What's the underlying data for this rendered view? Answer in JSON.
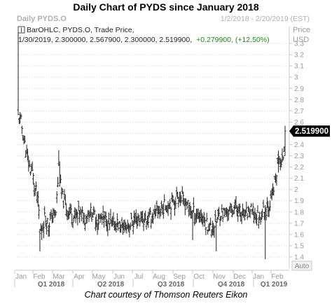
{
  "title": "Daily Chart of PYDS since January 2018",
  "caption": "Chart courtesy of Thomson Reuters Eikon",
  "header": {
    "symbol_label": "Daily PYDS.O",
    "date_range": "1/2/2018 - 2/20/2019 (EST)",
    "legend_line1": "BarOHLC, PYDS.O, Trade Price,",
    "legend_line2_prefix": "1/30/2019, 2.300000, 2.567900, 2.300000, 2.519900,",
    "legend_line2_change": "+0.279900, (+12.50%)",
    "price_label": "Price",
    "currency_label": "USD",
    "last_price_tag": "2.519900",
    "auto_label": "Auto"
  },
  "colors": {
    "bars": "#222222",
    "grid": "#dcdcdc",
    "axis_text": "#9a9a9a",
    "change_text": "#1a8a1a",
    "tag_bg": "#000000",
    "tag_text": "#ffffff"
  },
  "chart_data": {
    "type": "bar",
    "subtype": "ohlc",
    "x_axis": "date",
    "y_axis_label": "Price USD",
    "ylim": [
      1.3,
      3.45
    ],
    "yticks": [
      1.4,
      1.5,
      1.6,
      1.7,
      1.8,
      1.9,
      2.0,
      2.1,
      2.2,
      2.3,
      2.4,
      2.5,
      2.6,
      2.7,
      2.8,
      2.9,
      3.0,
      3.1,
      3.2,
      3.3
    ],
    "ytick_labels": [
      "1.4",
      "1.5",
      "1.6",
      "1.7",
      "1.8",
      "1.9",
      "2",
      "2.1",
      "2.2",
      "2.3",
      "2.4",
      "2.5",
      "2.6",
      "2.7",
      "2.8",
      "2.9",
      "3",
      "3.1",
      "3.2",
      "3.3"
    ],
    "month_labels": [
      "Jan",
      "Feb",
      "Mar",
      "Apr",
      "May",
      "Jun",
      "Jul",
      "Aug",
      "Sep",
      "Oct",
      "Nov",
      "Dec",
      "Jan",
      "Feb"
    ],
    "quarter_labels": [
      "Q1 2018",
      "Q2 2018",
      "Q3 2018",
      "Q4 2018",
      "Q1 2019"
    ],
    "grid": true,
    "last_bar": {
      "date": "1/30/2019",
      "open": 2.3,
      "high": 2.5679,
      "low": 2.3,
      "close": 2.5199,
      "change": 0.2799,
      "change_pct": 12.5
    },
    "close_anchors": [
      [
        0,
        2.65
      ],
      [
        3,
        2.6
      ],
      [
        6,
        2.45
      ],
      [
        9,
        2.3
      ],
      [
        12,
        2.2
      ],
      [
        15,
        2.15
      ],
      [
        18,
        2.0
      ],
      [
        20,
        1.95
      ],
      [
        22,
        1.8
      ],
      [
        23,
        1.6
      ],
      [
        25,
        1.65
      ],
      [
        28,
        1.75
      ],
      [
        32,
        1.7
      ],
      [
        36,
        1.75
      ],
      [
        40,
        1.8
      ],
      [
        43,
        2.2
      ],
      [
        46,
        1.95
      ],
      [
        50,
        1.85
      ],
      [
        55,
        1.8
      ],
      [
        60,
        1.75
      ],
      [
        65,
        1.8
      ],
      [
        70,
        1.75
      ],
      [
        75,
        1.8
      ],
      [
        80,
        1.78
      ],
      [
        85,
        1.72
      ],
      [
        90,
        1.75
      ],
      [
        95,
        1.7
      ],
      [
        100,
        1.68
      ],
      [
        105,
        1.7
      ],
      [
        110,
        1.65
      ],
      [
        115,
        1.68
      ],
      [
        120,
        1.7
      ],
      [
        125,
        1.72
      ],
      [
        130,
        1.75
      ],
      [
        135,
        1.72
      ],
      [
        140,
        1.75
      ],
      [
        145,
        1.78
      ],
      [
        150,
        1.82
      ],
      [
        155,
        1.85
      ],
      [
        160,
        1.88
      ],
      [
        165,
        1.9
      ],
      [
        170,
        1.95
      ],
      [
        175,
        1.9
      ],
      [
        180,
        1.85
      ],
      [
        185,
        1.8
      ],
      [
        190,
        1.78
      ],
      [
        195,
        1.75
      ],
      [
        200,
        1.7
      ],
      [
        205,
        1.65
      ],
      [
        210,
        1.72
      ],
      [
        215,
        1.8
      ],
      [
        220,
        1.78
      ],
      [
        225,
        1.82
      ],
      [
        230,
        1.85
      ],
      [
        235,
        1.8
      ],
      [
        240,
        1.75
      ],
      [
        245,
        1.82
      ],
      [
        250,
        1.78
      ],
      [
        255,
        1.75
      ],
      [
        260,
        1.8
      ],
      [
        265,
        1.85
      ],
      [
        270,
        1.95
      ],
      [
        275,
        2.2
      ],
      [
        277,
        2.3
      ],
      [
        279,
        2.2
      ],
      [
        281,
        2.3
      ],
      [
        283,
        2.52
      ]
    ]
  }
}
